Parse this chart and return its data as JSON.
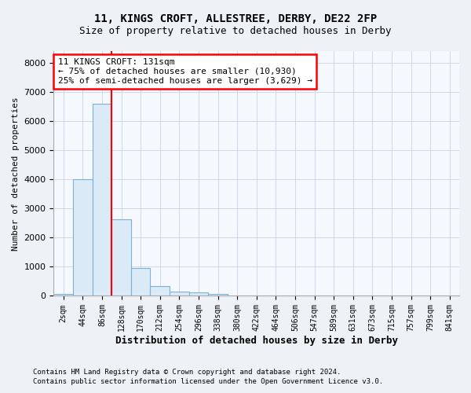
{
  "title1": "11, KINGS CROFT, ALLESTREE, DERBY, DE22 2FP",
  "title2": "Size of property relative to detached houses in Derby",
  "xlabel": "Distribution of detached houses by size in Derby",
  "ylabel": "Number of detached properties",
  "bar_color": "#daeaf7",
  "bar_edge_color": "#7ab3d4",
  "categories": [
    "2sqm",
    "44sqm",
    "86sqm",
    "128sqm",
    "170sqm",
    "212sqm",
    "254sqm",
    "296sqm",
    "338sqm",
    "380sqm",
    "422sqm",
    "464sqm",
    "506sqm",
    "547sqm",
    "589sqm",
    "631sqm",
    "673sqm",
    "715sqm",
    "757sqm",
    "799sqm",
    "841sqm"
  ],
  "values": [
    60,
    4000,
    6600,
    2620,
    950,
    330,
    140,
    110,
    70,
    0,
    0,
    0,
    0,
    0,
    0,
    0,
    0,
    0,
    0,
    0,
    0
  ],
  "red_line_x": 2.5,
  "annotation_line1": "11 KINGS CROFT: 131sqm",
  "annotation_line2": "← 75% of detached houses are smaller (10,930)",
  "annotation_line3": "25% of semi-detached houses are larger (3,629) →",
  "ylim": [
    0,
    8400
  ],
  "yticks": [
    0,
    1000,
    2000,
    3000,
    4000,
    5000,
    6000,
    7000,
    8000
  ],
  "footer1": "Contains HM Land Registry data © Crown copyright and database right 2024.",
  "footer2": "Contains public sector information licensed under the Open Government Licence v3.0.",
  "background_color": "#eef2f7",
  "plot_bg_color": "#f5f8fd",
  "grid_color": "#c8d4e4"
}
